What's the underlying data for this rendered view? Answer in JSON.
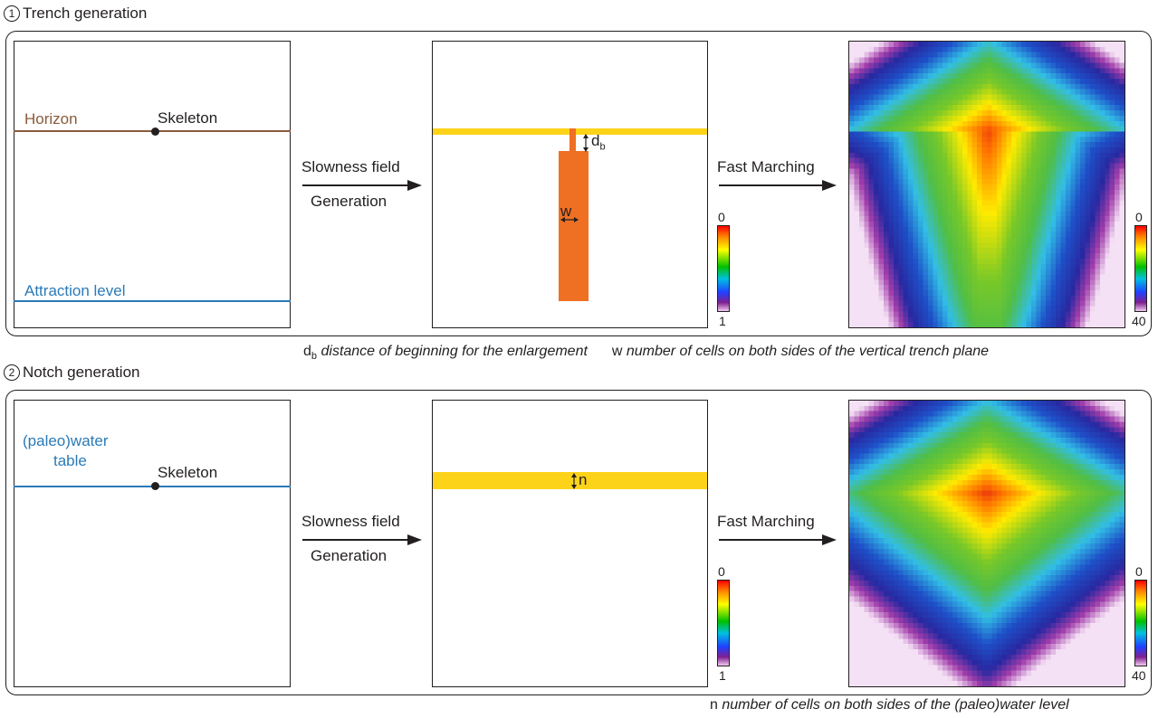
{
  "trench": {
    "num": "1",
    "title": "Trench generation",
    "horizon_label": "Horizon",
    "skeleton_label": "Skeleton",
    "attraction_label": "Attraction level",
    "arrow1_line1": "Slowness field",
    "arrow1_line2": "Generation",
    "db_main": "d",
    "db_sub": "b",
    "w_label": "w",
    "arrow2_label": "Fast Marching",
    "slowness_scale": {
      "top": "0",
      "bottom": "1"
    },
    "time_scale": {
      "top": "0",
      "bottom": "40"
    },
    "note_db_main": "d",
    "note_db_sub": "b",
    "note_db_text": "distance of beginning for the enlargement",
    "note_w_symbol": "w",
    "note_w_text": "number of cells on both sides of the vertical trench plane"
  },
  "notch": {
    "num": "2",
    "title": "Notch generation",
    "water_label_1": "(paleo)water",
    "water_label_2": "table",
    "skeleton_label": "Skeleton",
    "arrow1_line1": "Slowness field",
    "arrow1_line2": "Generation",
    "n_label": "n",
    "arrow2_label": "Fast Marching",
    "slowness_scale": {
      "top": "0",
      "bottom": "1"
    },
    "time_scale": {
      "top": "0",
      "bottom": "40"
    },
    "note_n_symbol": "n",
    "note_n_text": "number of cells on both sides of the (paleo)water level"
  },
  "colors": {
    "horizon": "#8b5a3c",
    "attraction": "#2a7ab8",
    "water": "#2a7ab8",
    "yellow_band": "#fdd319",
    "orange_trench": "#f07023"
  }
}
